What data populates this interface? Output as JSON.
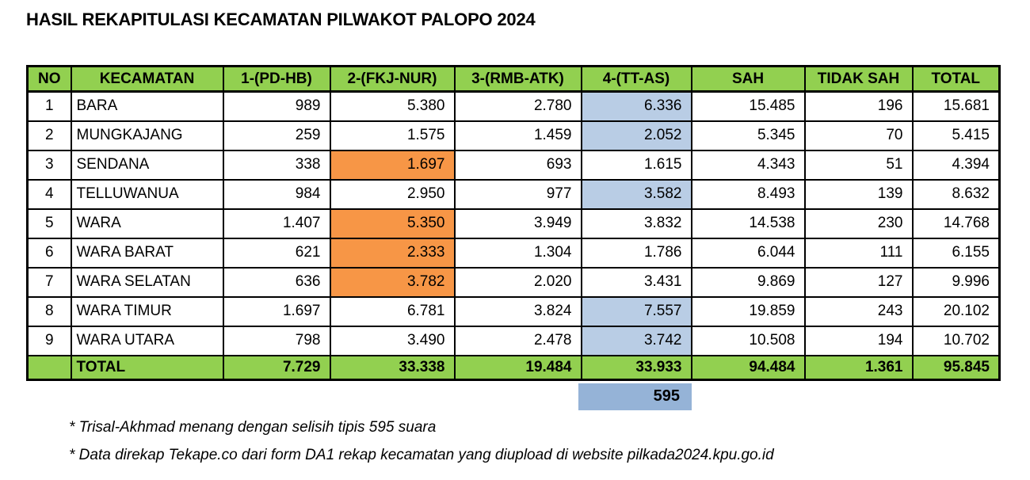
{
  "page": {
    "title": "HASIL REKAPITULASI KECAMATAN PILWAKOT PALOPO 2024"
  },
  "colors": {
    "header_green": "#92D050",
    "highlight_orange": "#F79646",
    "highlight_blue": "#B9CDE5",
    "margin_blue": "#95B3D7",
    "border_black": "#000000"
  },
  "table": {
    "headers": [
      "NO",
      "KECAMATAN",
      "1-(PD-HB)",
      "2-(FKJ-NUR)",
      "3-(RMB-ATK)",
      "4-(TT-AS)",
      "SAH",
      "TIDAK SAH",
      "TOTAL"
    ],
    "rows": [
      {
        "no": "1",
        "kecamatan": "BARA",
        "cells": [
          "989",
          "5.380",
          "2.780",
          "6.336",
          "15.485",
          "196",
          "15.681"
        ],
        "cell_bg": [
          null,
          null,
          null,
          "blue",
          null,
          null,
          null
        ]
      },
      {
        "no": "2",
        "kecamatan": "MUNGKAJANG",
        "cells": [
          "259",
          "1.575",
          "1.459",
          "2.052",
          "5.345",
          "70",
          "5.415"
        ],
        "cell_bg": [
          null,
          null,
          null,
          "blue",
          null,
          null,
          null
        ]
      },
      {
        "no": "3",
        "kecamatan": "SENDANA",
        "cells": [
          "338",
          "1.697",
          "693",
          "1.615",
          "4.343",
          "51",
          "4.394"
        ],
        "cell_bg": [
          null,
          "orange",
          null,
          null,
          null,
          null,
          null
        ]
      },
      {
        "no": "4",
        "kecamatan": "TELLUWANUA",
        "cells": [
          "984",
          "2.950",
          "977",
          "3.582",
          "8.493",
          "139",
          "8.632"
        ],
        "cell_bg": [
          null,
          null,
          null,
          "blue",
          null,
          null,
          null
        ]
      },
      {
        "no": "5",
        "kecamatan": "WARA",
        "cells": [
          "1.407",
          "5.350",
          "3.949",
          "3.832",
          "14.538",
          "230",
          "14.768"
        ],
        "cell_bg": [
          null,
          "orange",
          null,
          null,
          null,
          null,
          null
        ]
      },
      {
        "no": "6",
        "kecamatan": "WARA BARAT",
        "cells": [
          "621",
          "2.333",
          "1.304",
          "1.786",
          "6.044",
          "111",
          "6.155"
        ],
        "cell_bg": [
          null,
          "orange",
          null,
          null,
          null,
          null,
          null
        ]
      },
      {
        "no": "7",
        "kecamatan": "WARA SELATAN",
        "cells": [
          "636",
          "3.782",
          "2.020",
          "3.431",
          "9.869",
          "127",
          "9.996"
        ],
        "cell_bg": [
          null,
          "orange",
          null,
          null,
          null,
          null,
          null
        ]
      },
      {
        "no": "8",
        "kecamatan": "WARA TIMUR",
        "cells": [
          "1.697",
          "6.781",
          "3.824",
          "7.557",
          "19.859",
          "243",
          "20.102"
        ],
        "cell_bg": [
          null,
          null,
          null,
          "blue",
          null,
          null,
          null
        ]
      },
      {
        "no": "9",
        "kecamatan": "WARA UTARA",
        "cells": [
          "798",
          "3.490",
          "2.478",
          "3.742",
          "10.508",
          "194",
          "10.702"
        ],
        "cell_bg": [
          null,
          null,
          null,
          "blue",
          null,
          null,
          null
        ]
      }
    ],
    "total_row": {
      "label": "TOTAL",
      "cells": [
        "7.729",
        "33.338",
        "19.484",
        "33.933",
        "94.484",
        "1.361",
        "95.845"
      ]
    },
    "margin_value": "595"
  },
  "footnotes": [
    "* Trisal-Akhmad menang dengan selisih tipis 595 suara",
    "* Data direkap Tekape.co dari form DA1 rekap kecamatan yang diupload di website pilkada2024.kpu.go.id"
  ]
}
